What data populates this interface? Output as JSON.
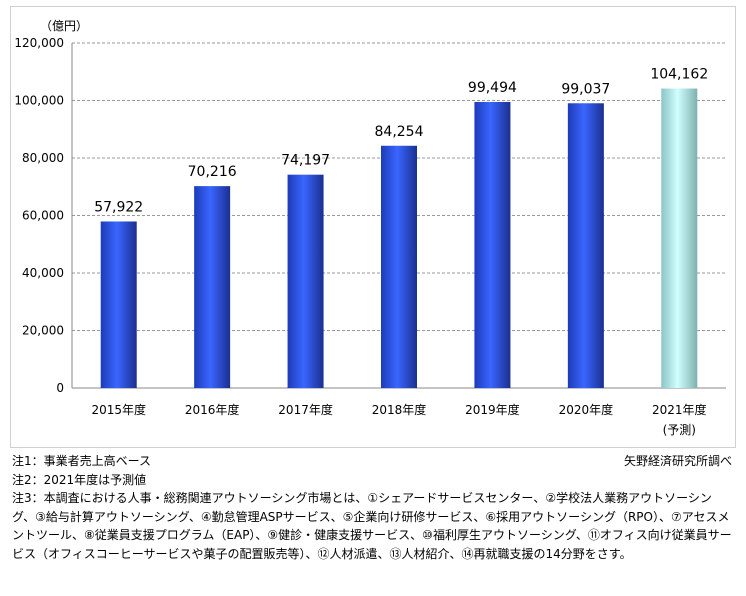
{
  "chart_data": {
    "type": "bar",
    "unit_label": "（億円）",
    "categories": [
      "2015年度",
      "2016年度",
      "2017年度",
      "2018年度",
      "2019年度",
      "2020年度",
      "2021年度"
    ],
    "category_sublabels": [
      "",
      "",
      "",
      "",
      "",
      "",
      "(予測)"
    ],
    "values": [
      57922,
      70216,
      74197,
      84254,
      99494,
      99037,
      104162
    ],
    "data_labels": [
      "57,922",
      "70,216",
      "74,197",
      "84,254",
      "99,494",
      "99,037",
      "104,162"
    ],
    "forecast": [
      false,
      false,
      false,
      false,
      false,
      false,
      true
    ],
    "ylim": [
      0,
      120000
    ],
    "yticks": [
      0,
      20000,
      40000,
      60000,
      80000,
      100000,
      120000
    ],
    "ytick_labels": [
      "0",
      "20,000",
      "40,000",
      "60,000",
      "80,000",
      "100,000",
      "120,000"
    ],
    "grid": true,
    "colors": {
      "actual": "#2a4fe0",
      "forecast": "#b8f0f0"
    }
  },
  "notes": {
    "note1": "注1：事業者売上高ベース",
    "note2": "注2：2021年度は予測値",
    "note3": "注3：本調査における人事・総務関連アウトソーシング市場とは、①シェアードサービスセンター、②学校法人業務アウトソーシング、③給与計算アウトソーシング、④勤怠管理ASPサービス、⑤企業向け研修サービス、⑥採用アウトソーシング（RPO）、⑦アセスメントツール、⑧従業員支援プログラム（EAP）、⑨健診・健康支援サービス、⑩福利厚生アウトソーシング、⑪オフィス向け従業員サービス（オフィスコーヒーサービスや菓子の配置販売等）、⑫人材派遣、⑬人材紹介、⑭再就職支援の14分野をさす。",
    "source": "矢野経済研究所調べ"
  }
}
